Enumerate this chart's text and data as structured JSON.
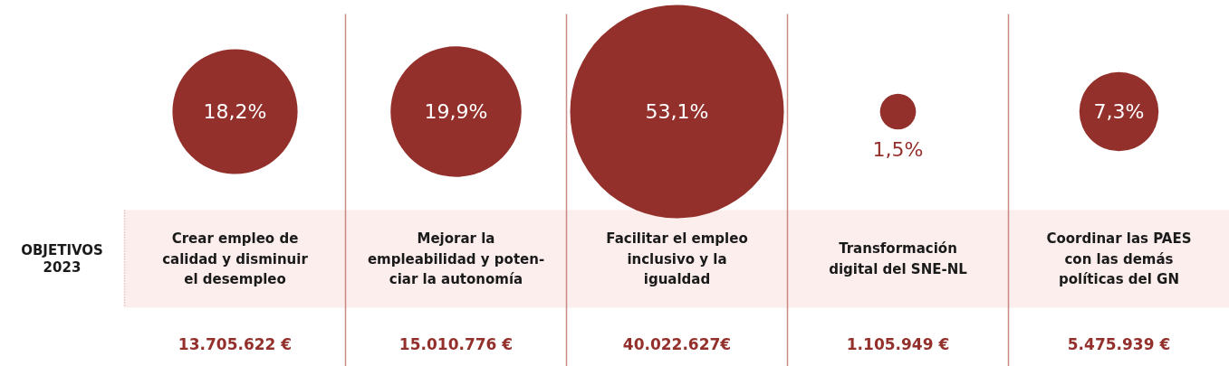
{
  "chart_data": {
    "type": "other",
    "ylabel": "OBJETIVOS\n2023",
    "categories": [
      "Crear empleo de\ncalidad y disminuir\nel desempleo",
      "Mejorar la\nempleabilidad y poten-\nciar la autonomía",
      "Facilitar el empleo\ninclusivo y la\nigualdad",
      "Transformación\ndigital del SNE-NL",
      "Coordinar las PAES\ncon las demás\npolíticas del GN"
    ],
    "values": [
      18.2,
      19.9,
      53.1,
      1.5,
      7.3
    ],
    "value_labels": [
      "18,2%",
      "19,9%",
      "53,1%",
      "1,5%",
      "7,3%"
    ],
    "color": "#93302b",
    "annotations": [
      {
        "text": "13.705.622 €",
        "x": "Crear empleo de\ncalidad y disminuir\nel desempleo"
      },
      {
        "text": "15.010.776 €",
        "x": "Mejorar la\nempleabilidad y poten-\nciar la autonomía"
      },
      {
        "text": "40.022.627€",
        "x": "Facilitar el empleo\ninclusivo y la\nigualdad"
      },
      {
        "text": "1.105.949 €",
        "x": "Transformación\ndigital del SNE-NL"
      },
      {
        "text": "5.475.939 €",
        "x": "Coordinar las PAES\ncon las demás\npolíticas del GN"
      }
    ]
  }
}
